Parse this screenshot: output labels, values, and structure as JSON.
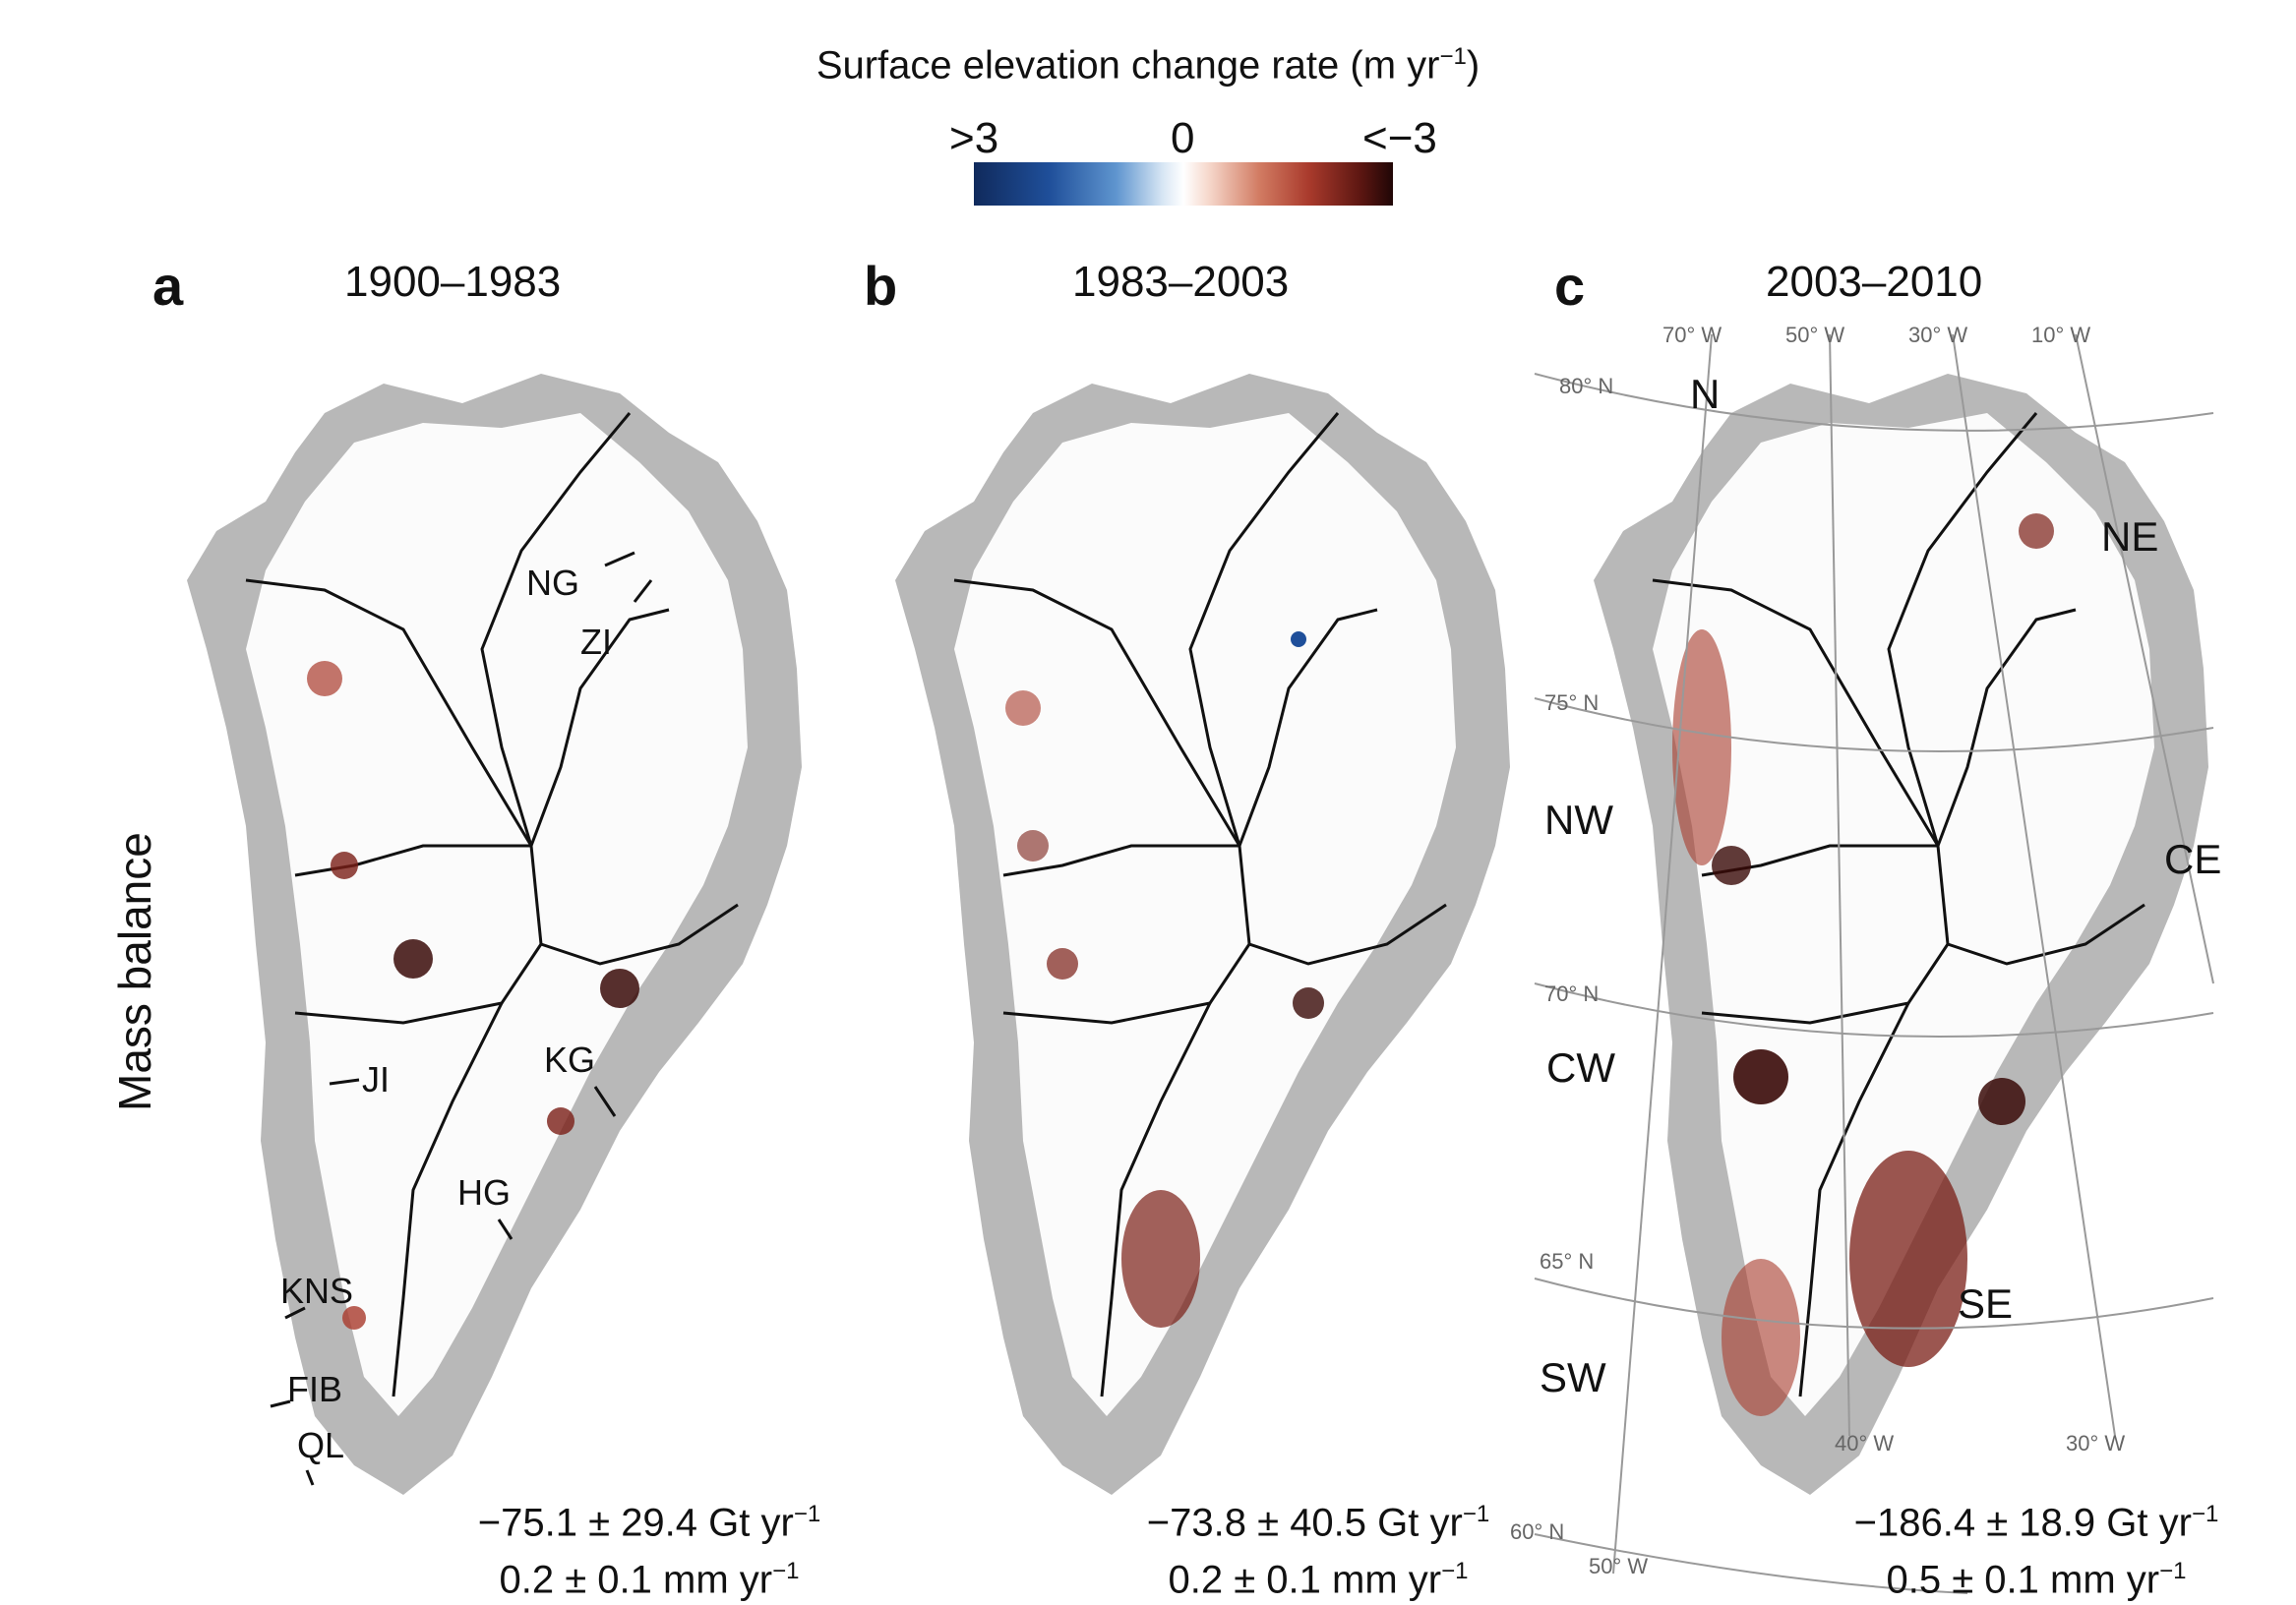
{
  "colorbar": {
    "title": "Surface elevation change rate (m yr",
    "title_sup": "−1",
    "title_end": ")",
    "tick_left": ">3",
    "tick_mid": "0",
    "tick_right": "<−3",
    "colors": [
      "#102a5c",
      "#1f4f9a",
      "#ffffff",
      "#a93a2c",
      "#200606"
    ]
  },
  "y_label": "Mass balance",
  "panels": [
    {
      "letter": "a",
      "period": "1900–1983",
      "mb_line1": "−75.1 ± 29.4 Gt yr",
      "mb_line2": "0.2 ± 0.1 mm yr",
      "sup": "−1"
    },
    {
      "letter": "b",
      "period": "1983–2003",
      "mb_line1": "−73.8 ± 40.5 Gt yr",
      "mb_line2": "0.2 ± 0.1 mm yr",
      "sup": "−1"
    },
    {
      "letter": "c",
      "period": "2003–2010",
      "mb_line1": "−186.4 ± 18.9 Gt yr",
      "mb_line2": "0.5 ± 0.1 mm yr",
      "sup": "−1"
    }
  ],
  "glacier_labels": [
    "NG",
    "ZI",
    "JI",
    "KG",
    "HG",
    "KNS",
    "FIB",
    "QL"
  ],
  "regions": [
    "N",
    "NE",
    "NW",
    "CE",
    "CW",
    "SE",
    "SW"
  ],
  "graticule": {
    "meridians_top": [
      "70° W",
      "50° W",
      "30° W",
      "10° W"
    ],
    "meridians_bottom": [
      "40° W",
      "30° W",
      "50° W"
    ],
    "parallels": [
      "80° N",
      "75° N",
      "70° N",
      "65° N",
      "60° N"
    ]
  },
  "map_colors": {
    "land": "#b8b8b8",
    "ice": "#fbfbfb",
    "loss": "#a93a2c",
    "loss_strong": "#3a0a08",
    "gain": "#1f4f9a",
    "divide": "#111111"
  }
}
